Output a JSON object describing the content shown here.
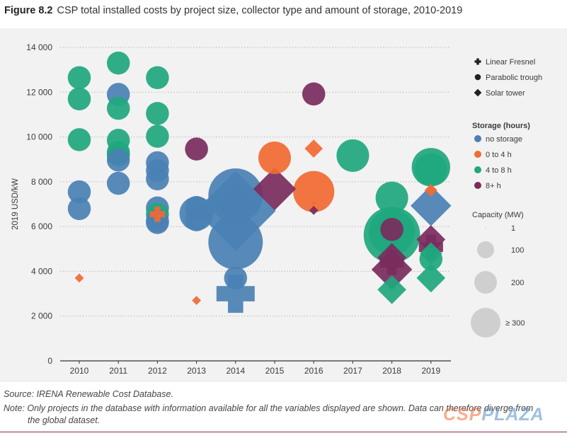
{
  "header": {
    "figure_label": "Figure 8.2",
    "title": "CSP total installed costs by project size, collector type and amount of storage, 2010-2019"
  },
  "legend": {
    "types": [
      {
        "label": "Linear Fresnel",
        "shape": "plus"
      },
      {
        "label": "Parabolic trough",
        "shape": "circle"
      },
      {
        "label": "Solar tower",
        "shape": "diamond"
      }
    ],
    "storage_title": "Storage (hours)",
    "storage": [
      {
        "label": "no storage",
        "key": "none",
        "color": "#4a81b4"
      },
      {
        "label": "0 to 4 h",
        "key": "0-4",
        "color": "#f26a32"
      },
      {
        "label": "4 to 8 h",
        "key": "4-8",
        "color": "#20a77e"
      },
      {
        "label": "8+ h",
        "key": "8+",
        "color": "#7a2d5d"
      }
    ],
    "capacity_title": "Capacity (MW)",
    "capacity": [
      {
        "label": "1",
        "mw": 1
      },
      {
        "label": "100",
        "mw": 100
      },
      {
        "label": "200",
        "mw": 200
      },
      {
        "label": "≥ 300",
        "mw": 300
      }
    ]
  },
  "chart_data": {
    "type": "scatter",
    "title": "CSP total installed costs by project size, collector type and amount of storage, 2010-2019",
    "ylabel": "2019 USD/kW",
    "xlabel": "",
    "categories": [
      "2010",
      "2011",
      "2012",
      "2013",
      "2014",
      "2015",
      "2016",
      "2017",
      "2018",
      "2019"
    ],
    "ylim": [
      0,
      14000
    ],
    "yticks": [
      0,
      2000,
      4000,
      6000,
      8000,
      10000,
      12000,
      14000
    ],
    "ytick_labels": [
      "0",
      "2 000",
      "4 000",
      "6 000",
      "8 000",
      "10 000",
      "12 000",
      "14 000"
    ],
    "grid": true,
    "points": [
      {
        "x": "2010",
        "y": 12650,
        "type": "Parabolic trough",
        "storage": "4-8",
        "mw": 50
      },
      {
        "x": "2010",
        "y": 11700,
        "type": "Parabolic trough",
        "storage": "4-8",
        "mw": 50
      },
      {
        "x": "2010",
        "y": 9880,
        "type": "Parabolic trough",
        "storage": "4-8",
        "mw": 50
      },
      {
        "x": "2010",
        "y": 7550,
        "type": "Parabolic trough",
        "storage": "none",
        "mw": 50
      },
      {
        "x": "2010",
        "y": 6800,
        "type": "Parabolic trough",
        "storage": "none",
        "mw": 50
      },
      {
        "x": "2010",
        "y": 3700,
        "type": "Solar tower",
        "storage": "0-4",
        "mw": 5
      },
      {
        "x": "2011",
        "y": 13300,
        "type": "Parabolic trough",
        "storage": "4-8",
        "mw": 50
      },
      {
        "x": "2011",
        "y": 11900,
        "type": "Parabolic trough",
        "storage": "none",
        "mw": 50
      },
      {
        "x": "2011",
        "y": 11280,
        "type": "Parabolic trough",
        "storage": "4-8",
        "mw": 50
      },
      {
        "x": "2011",
        "y": 9850,
        "type": "Parabolic trough",
        "storage": "4-8",
        "mw": 50
      },
      {
        "x": "2011",
        "y": 9320,
        "type": "Parabolic trough",
        "storage": "4-8",
        "mw": 50
      },
      {
        "x": "2011",
        "y": 9200,
        "type": "Parabolic trough",
        "storage": "4-8",
        "mw": 50
      },
      {
        "x": "2011",
        "y": 8970,
        "type": "Parabolic trough",
        "storage": "none",
        "mw": 50
      },
      {
        "x": "2011",
        "y": 7930,
        "type": "Parabolic trough",
        "storage": "none",
        "mw": 50
      },
      {
        "x": "2012",
        "y": 12650,
        "type": "Parabolic trough",
        "storage": "4-8",
        "mw": 50
      },
      {
        "x": "2012",
        "y": 11050,
        "type": "Parabolic trough",
        "storage": "4-8",
        "mw": 50
      },
      {
        "x": "2012",
        "y": 10030,
        "type": "Parabolic trough",
        "storage": "4-8",
        "mw": 50
      },
      {
        "x": "2012",
        "y": 8850,
        "type": "Parabolic trough",
        "storage": "none",
        "mw": 50
      },
      {
        "x": "2012",
        "y": 8500,
        "type": "Parabolic trough",
        "storage": "none",
        "mw": 50
      },
      {
        "x": "2012",
        "y": 8130,
        "type": "Parabolic trough",
        "storage": "none",
        "mw": 50
      },
      {
        "x": "2012",
        "y": 6830,
        "type": "Parabolic trough",
        "storage": "none",
        "mw": 50
      },
      {
        "x": "2012",
        "y": 6550,
        "type": "Parabolic trough",
        "storage": "4-8",
        "mw": 50
      },
      {
        "x": "2012",
        "y": 6550,
        "type": "Linear Fresnel",
        "storage": "0-4",
        "mw": 20
      },
      {
        "x": "2012",
        "y": 6250,
        "type": "Parabolic trough",
        "storage": "none",
        "mw": 50
      },
      {
        "x": "2012",
        "y": 6180,
        "type": "Parabolic trough",
        "storage": "none",
        "mw": 50
      },
      {
        "x": "2013",
        "y": 9460,
        "type": "Parabolic trough",
        "storage": "8+",
        "mw": 50
      },
      {
        "x": "2013",
        "y": 6850,
        "type": "Parabolic trough",
        "storage": "none",
        "mw": 50
      },
      {
        "x": "2013",
        "y": 6580,
        "type": "Parabolic trough",
        "storage": "none",
        "mw": 110
      },
      {
        "x": "2013",
        "y": 6300,
        "type": "Parabolic trough",
        "storage": "none",
        "mw": 50
      },
      {
        "x": "2013",
        "y": 2700,
        "type": "Solar tower",
        "storage": "0-4",
        "mw": 5
      },
      {
        "x": "2014",
        "y": 7380,
        "type": "Parabolic trough",
        "storage": "none",
        "mw": 280
      },
      {
        "x": "2014",
        "y": 6980,
        "type": "Solar tower",
        "storage": "none",
        "mw": 100
      },
      {
        "x": "2014",
        "y": 6700,
        "type": "Solar tower",
        "storage": "none",
        "mw": 390
      },
      {
        "x": "2014",
        "y": 5300,
        "type": "Parabolic trough",
        "storage": "none",
        "mw": 280
      },
      {
        "x": "2014",
        "y": 3700,
        "type": "Parabolic trough",
        "storage": "none",
        "mw": 50
      },
      {
        "x": "2014",
        "y": 3000,
        "type": "Linear Fresnel",
        "storage": "none",
        "mw": 125
      },
      {
        "x": "2015",
        "y": 9070,
        "type": "Parabolic trough",
        "storage": "0-4",
        "mw": 100
      },
      {
        "x": "2015",
        "y": 7680,
        "type": "Solar tower",
        "storage": "8+",
        "mw": 110
      },
      {
        "x": "2016",
        "y": 11920,
        "type": "Parabolic trough",
        "storage": "8+",
        "mw": 50
      },
      {
        "x": "2016",
        "y": 9480,
        "type": "Solar tower",
        "storage": "0-4",
        "mw": 20
      },
      {
        "x": "2016",
        "y": 7560,
        "type": "Parabolic trough",
        "storage": "0-4",
        "mw": 160
      },
      {
        "x": "2016",
        "y": 7050,
        "type": "Solar tower",
        "storage": "0-4",
        "mw": 1
      },
      {
        "x": "2016",
        "y": 6720,
        "type": "Solar tower",
        "storage": "8+",
        "mw": 5
      },
      {
        "x": "2017",
        "y": 9170,
        "type": "Parabolic trough",
        "storage": "4-8",
        "mw": 100
      },
      {
        "x": "2018",
        "y": 7280,
        "type": "Parabolic trough",
        "storage": "4-8",
        "mw": 100
      },
      {
        "x": "2018",
        "y": 5900,
        "type": "Solar tower",
        "storage": "4-8",
        "mw": 100
      },
      {
        "x": "2018",
        "y": 5750,
        "type": "Parabolic trough",
        "storage": "4-8",
        "mw": 200
      },
      {
        "x": "2018",
        "y": 5620,
        "type": "Parabolic trough",
        "storage": "4-8",
        "mw": 300
      },
      {
        "x": "2018",
        "y": 5870,
        "type": "Parabolic trough",
        "storage": "8+",
        "mw": 50
      },
      {
        "x": "2018",
        "y": 4620,
        "type": "Solar tower",
        "storage": "8+",
        "mw": 50
      },
      {
        "x": "2018",
        "y": 4380,
        "type": "Linear Fresnel",
        "storage": "8+",
        "mw": 50
      },
      {
        "x": "2018",
        "y": 4080,
        "type": "Solar tower",
        "storage": "8+",
        "mw": 100
      },
      {
        "x": "2018",
        "y": 3180,
        "type": "Solar tower",
        "storage": "4-8",
        "mw": 50
      },
      {
        "x": "2019",
        "y": 8650,
        "type": "Parabolic trough",
        "storage": "4-8",
        "mw": 140
      },
      {
        "x": "2019",
        "y": 8550,
        "type": "Parabolic trough",
        "storage": "4-8",
        "mw": 100
      },
      {
        "x": "2019",
        "y": 7620,
        "type": "Solar tower",
        "storage": "0-4",
        "mw": 10
      },
      {
        "x": "2019",
        "y": 6930,
        "type": "Solar tower",
        "storage": "none",
        "mw": 100
      },
      {
        "x": "2019",
        "y": 5420,
        "type": "Solar tower",
        "storage": "8+",
        "mw": 50
      },
      {
        "x": "2019",
        "y": 5080,
        "type": "Linear Fresnel",
        "storage": "8+",
        "mw": 50
      },
      {
        "x": "2019",
        "y": 4800,
        "type": "Solar tower",
        "storage": "4-8",
        "mw": 30
      },
      {
        "x": "2019",
        "y": 4550,
        "type": "Parabolic trough",
        "storage": "4-8",
        "mw": 50
      },
      {
        "x": "2019",
        "y": 3700,
        "type": "Solar tower",
        "storage": "4-8",
        "mw": 50
      }
    ]
  },
  "footer": {
    "source": "Source: IRENA Renewable Cost Database.",
    "note_line1": "Note: Only projects in the database with information available for all the variables displayed are shown. Data can therefore diverge from",
    "note_line2": "the global dataset."
  },
  "watermark": {
    "part1": "CSP",
    "part2": "PLAZA"
  }
}
